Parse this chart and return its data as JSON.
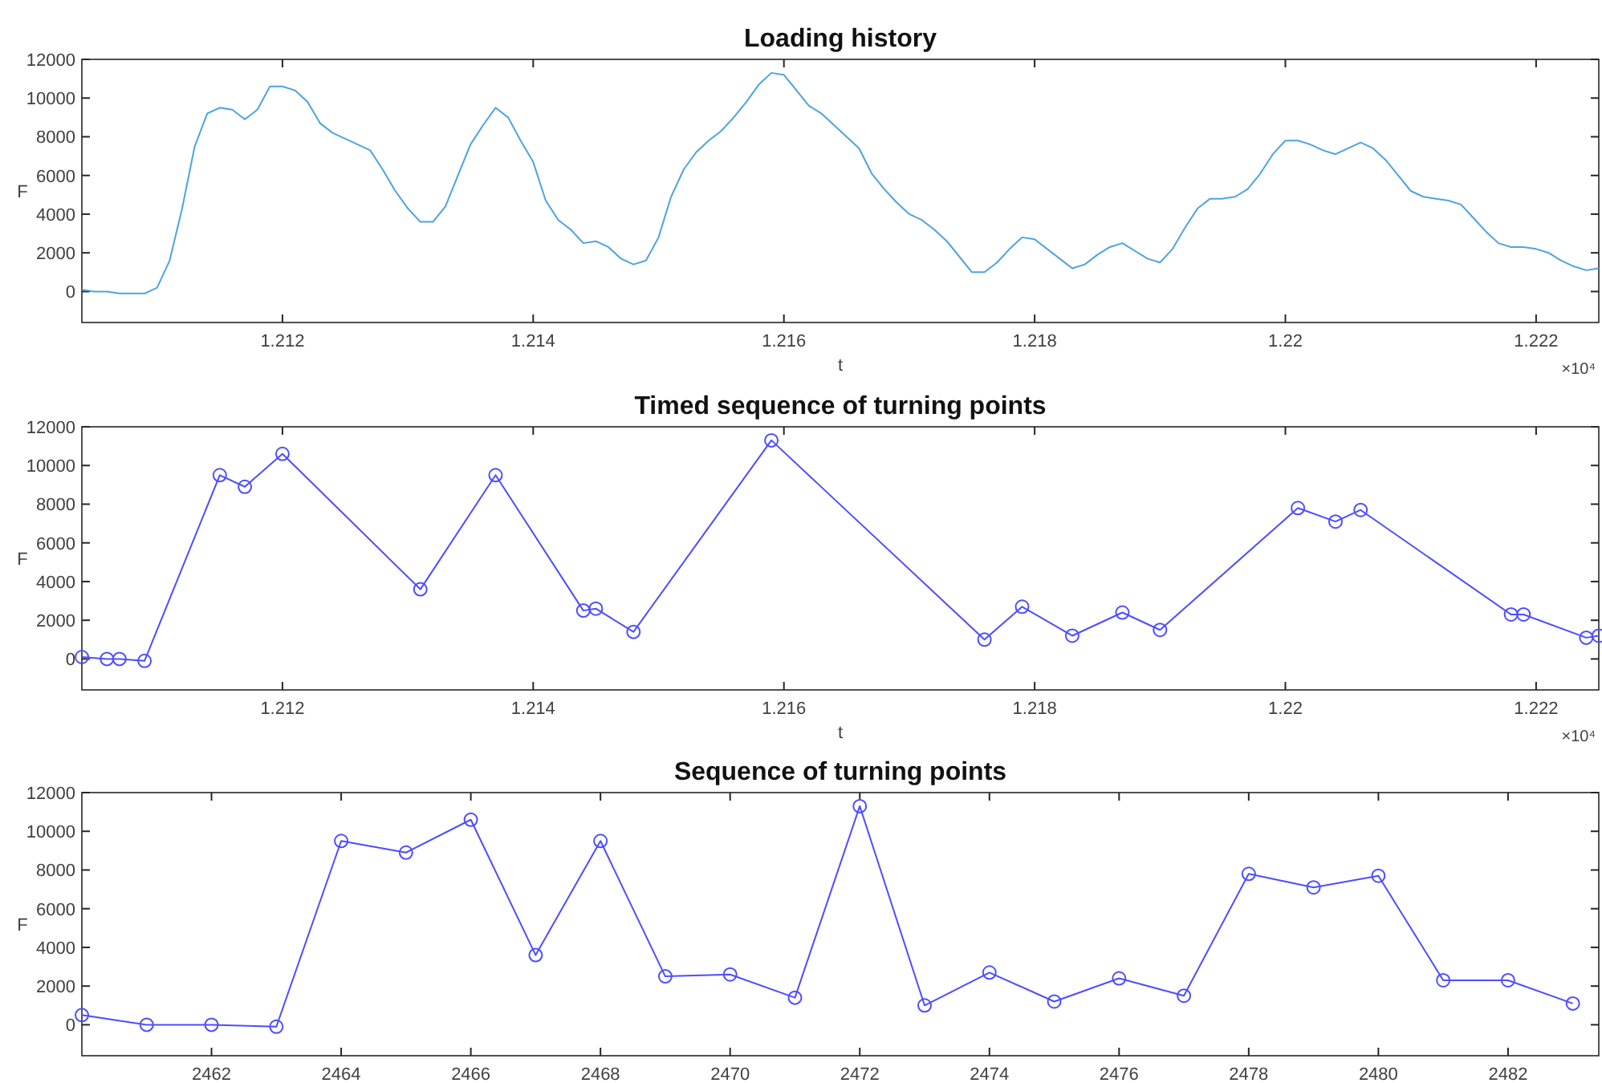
{
  "chart_data": [
    {
      "type": "line",
      "title": "Loading history",
      "xlabel": "t",
      "ylabel": "F",
      "annotations": [
        "×10⁴"
      ],
      "xlim": [
        1.2104,
        1.2225
      ],
      "ylim": [
        -1600,
        12000
      ],
      "xticks": [
        1.212,
        1.214,
        1.216,
        1.218,
        1.22,
        1.222
      ],
      "yticks": [
        0,
        2000,
        4000,
        6000,
        8000,
        10000,
        12000
      ],
      "grid": false,
      "x": [
        1.2104,
        1.2105,
        1.2106,
        1.2107,
        1.2108,
        1.2109,
        1.211,
        1.2111,
        1.2112,
        1.2113,
        1.2114,
        1.2115,
        1.2116,
        1.2117,
        1.2118,
        1.2119,
        1.212,
        1.2121,
        1.2122,
        1.2123,
        1.2124,
        1.2125,
        1.2126,
        1.2127,
        1.2128,
        1.2129,
        1.213,
        1.2131,
        1.2132,
        1.2133,
        1.2134,
        1.2135,
        1.2136,
        1.2137,
        1.2138,
        1.2139,
        1.214,
        1.2141,
        1.2142,
        1.2143,
        1.2144,
        1.2145,
        1.2146,
        1.2147,
        1.2148,
        1.2149,
        1.215,
        1.2151,
        1.2152,
        1.2153,
        1.2154,
        1.2155,
        1.2156,
        1.2157,
        1.2158,
        1.2159,
        1.216,
        1.2161,
        1.2162,
        1.2163,
        1.2164,
        1.2165,
        1.2166,
        1.2167,
        1.2168,
        1.2169,
        1.217,
        1.2171,
        1.2172,
        1.2173,
        1.2174,
        1.2175,
        1.2176,
        1.2177,
        1.2178,
        1.2179,
        1.218,
        1.2181,
        1.2182,
        1.2183,
        1.2184,
        1.2185,
        1.2186,
        1.2187,
        1.2188,
        1.2189,
        1.219,
        1.2191,
        1.2192,
        1.2193,
        1.2194,
        1.2195,
        1.2196,
        1.2197,
        1.2198,
        1.2199,
        1.22,
        1.2201,
        1.2202,
        1.2203,
        1.2204,
        1.2205,
        1.2206,
        1.2207,
        1.2208,
        1.2209,
        1.221,
        1.2211,
        1.2212,
        1.2213,
        1.2214,
        1.2215,
        1.2216,
        1.2217,
        1.2218,
        1.2219,
        1.222,
        1.2221,
        1.2222,
        1.2223,
        1.2224,
        1.2225
      ],
      "series": [
        {
          "color": "#4da3e0",
          "values": [
            100,
            0,
            0,
            -100,
            -100,
            -100,
            200,
            1600,
            4300,
            7500,
            9200,
            9500,
            9400,
            8900,
            9400,
            10600,
            10600,
            10400,
            9800,
            8700,
            8200,
            7900,
            7600,
            7300,
            6300,
            5200,
            4300,
            3600,
            3600,
            4400,
            6000,
            7600,
            8600,
            9500,
            9000,
            7800,
            6700,
            4700,
            3700,
            3200,
            2500,
            2600,
            2300,
            1700,
            1400,
            1600,
            2800,
            4900,
            6300,
            7200,
            7800,
            8300,
            9000,
            9800,
            10700,
            11300,
            11200,
            10400,
            9600,
            9200,
            8600,
            8000,
            7400,
            6100,
            5300,
            4600,
            4000,
            3700,
            3200,
            2600,
            1800,
            1000,
            1000,
            1500,
            2200,
            2800,
            2700,
            2200,
            1700,
            1200,
            1400,
            1900,
            2300,
            2500,
            2100,
            1700,
            1500,
            2200,
            3300,
            4300,
            4800,
            4800,
            4900,
            5300,
            6100,
            7100,
            7800,
            7800,
            7600,
            7300,
            7100,
            7400,
            7700,
            7400,
            6800,
            6000,
            5200,
            4900,
            4800,
            4700,
            4500,
            3800,
            3100,
            2500,
            2300,
            2300,
            2200,
            2000,
            1600,
            1300,
            1100,
            1200
          ]
        }
      ]
    },
    {
      "type": "line",
      "title": "Timed sequence of turning points",
      "xlabel": "t",
      "ylabel": "F",
      "annotations": [
        "×10⁴"
      ],
      "xlim": [
        1.2104,
        1.2225
      ],
      "ylim": [
        -1600,
        12000
      ],
      "xticks": [
        1.212,
        1.214,
        1.216,
        1.218,
        1.22,
        1.222
      ],
      "yticks": [
        0,
        2000,
        4000,
        6000,
        8000,
        10000,
        12000
      ],
      "grid": false,
      "marker": "circle",
      "x": [
        1.2104,
        1.2106,
        1.2107,
        1.2109,
        1.2115,
        1.2117,
        1.212,
        1.2131,
        1.2137,
        1.2144,
        1.2145,
        1.2148,
        1.2159,
        1.2176,
        1.2179,
        1.2183,
        1.2187,
        1.219,
        1.2201,
        1.2204,
        1.2206,
        1.2218,
        1.2219,
        1.2224,
        1.2225
      ],
      "series": [
        {
          "color": "#4d4dff",
          "values": [
            100,
            0,
            0,
            -100,
            9500,
            8900,
            10600,
            3600,
            9500,
            2500,
            2600,
            1400,
            11300,
            1000,
            2700,
            1200,
            2400,
            1500,
            7800,
            7100,
            7700,
            2300,
            2300,
            1100,
            1200
          ]
        }
      ]
    },
    {
      "type": "line",
      "title": "Sequence of turning points",
      "ylabel": "F",
      "xlim": [
        2460,
        2483.4
      ],
      "ylim": [
        -1600,
        12000
      ],
      "xticks": [
        2462,
        2464,
        2466,
        2468,
        2470,
        2472,
        2474,
        2476,
        2478,
        2480,
        2482
      ],
      "yticks": [
        0,
        2000,
        4000,
        6000,
        8000,
        10000,
        12000
      ],
      "grid": false,
      "marker": "circle",
      "x": [
        2460,
        2461,
        2462,
        2463,
        2464,
        2465,
        2466,
        2467,
        2468,
        2469,
        2470,
        2471,
        2472,
        2473,
        2474,
        2475,
        2476,
        2477,
        2478,
        2479,
        2480,
        2481,
        2482,
        2483
      ],
      "series": [
        {
          "color": "#4d4dff",
          "values": [
            500,
            0,
            0,
            -100,
            9500,
            8900,
            10600,
            3600,
            9500,
            2500,
            2600,
            1400,
            11300,
            1000,
            2700,
            1200,
            2400,
            1500,
            7800,
            7100,
            7700,
            2300,
            2300,
            1100
          ]
        }
      ]
    }
  ]
}
